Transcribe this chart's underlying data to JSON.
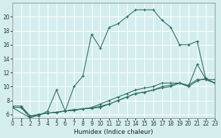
{
  "xlabel": "Humidex (Indice chaleur)",
  "bg_color": "#d4eeee",
  "grid_color": "#ffffff",
  "line_color": "#2d6b5e",
  "xlim": [
    0,
    23
  ],
  "ylim": [
    5.5,
    22
  ],
  "yticks": [
    6,
    8,
    10,
    12,
    14,
    16,
    18,
    20
  ],
  "xticks": [
    0,
    1,
    2,
    3,
    4,
    5,
    6,
    7,
    8,
    9,
    10,
    11,
    12,
    13,
    14,
    15,
    16,
    17,
    18,
    19,
    20,
    21,
    22,
    23
  ],
  "series": [
    {
      "x": [
        1,
        2,
        3,
        4,
        5,
        6,
        7,
        8,
        9,
        10,
        11,
        12,
        13,
        14,
        15,
        16,
        17,
        18,
        19,
        20,
        21,
        22,
        23
      ],
      "y": [
        7.0,
        5.8,
        5.8,
        6.5,
        9.5,
        6.5,
        10.0,
        11.5,
        17.5,
        15.5,
        18.5,
        19.0,
        20.0,
        21.0,
        21.0,
        21.0,
        19.5,
        18.5,
        16.0,
        16.0,
        16.5,
        11.0,
        11.0
      ]
    },
    {
      "x": [
        0,
        1,
        2,
        3,
        4,
        5,
        6,
        7,
        8,
        9,
        10,
        11,
        12,
        13,
        14,
        15,
        16,
        17,
        18,
        19,
        20,
        21,
        22,
        23
      ],
      "y": [
        7.2,
        7.2,
        5.8,
        6.0,
        6.2,
        6.3,
        6.5,
        6.7,
        6.8,
        7.0,
        7.5,
        8.0,
        8.5,
        9.0,
        9.5,
        9.8,
        10.0,
        10.5,
        10.5,
        10.5,
        10.2,
        11.0,
        11.0,
        10.5
      ]
    },
    {
      "x": [
        0,
        1,
        2,
        3,
        4,
        5,
        6,
        7,
        8,
        9,
        10,
        11,
        12,
        13,
        14,
        15,
        16,
        17,
        18,
        19,
        20,
        21,
        22,
        23
      ],
      "y": [
        7.0,
        7.0,
        5.5,
        6.0,
        6.2,
        6.3,
        6.5,
        6.6,
        6.8,
        6.9,
        7.2,
        7.5,
        8.0,
        8.5,
        9.0,
        9.2,
        9.5,
        10.0,
        10.2,
        10.5,
        10.0,
        10.8,
        11.2,
        10.5
      ]
    },
    {
      "x": [
        0,
        2,
        3,
        4,
        5,
        6,
        7,
        8,
        9,
        10,
        11,
        12,
        13,
        14,
        15,
        16,
        17,
        18,
        19,
        20,
        21,
        22,
        23
      ],
      "y": [
        7.0,
        5.5,
        6.0,
        6.2,
        6.3,
        6.5,
        6.6,
        6.8,
        6.9,
        7.0,
        7.5,
        8.0,
        8.5,
        9.0,
        9.2,
        9.5,
        9.8,
        10.0,
        10.5,
        10.0,
        13.2,
        11.0,
        10.5
      ]
    }
  ]
}
